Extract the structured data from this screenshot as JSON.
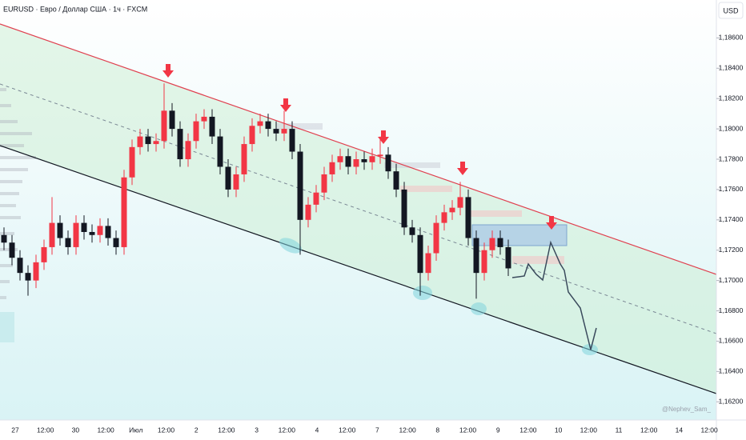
{
  "chart_data": {
    "type": "candlestick",
    "title": "EURUSD · Евро / Доллар США · 1ч · FXCM",
    "currency": "USD",
    "watermark": "@Nephev_Sam_",
    "categories": [
      "27",
      "12:00",
      "30",
      "12:00",
      "Июл",
      "12:00",
      "2",
      "12:00",
      "3",
      "12:00",
      "4",
      "12:00",
      "7",
      "12:00",
      "8",
      "12:00",
      "9",
      "12:00",
      "10",
      "12:00",
      "11",
      "12:00",
      "14",
      "12:00"
    ],
    "open": [
      1.173,
      1.1725,
      1.1715,
      1.1705,
      1.17,
      1.1712,
      1.1722,
      1.1738,
      1.1728,
      1.1722,
      1.1738,
      1.1732,
      1.173,
      1.1736,
      1.1728,
      1.1722,
      1.1768,
      1.1788,
      1.1795,
      1.179,
      1.1792,
      1.1812,
      1.18,
      1.178,
      1.1792,
      1.1805,
      1.1808,
      1.1795,
      1.1775,
      1.176,
      1.177,
      1.179,
      1.1802,
      1.1805,
      1.18,
      1.1797,
      1.18,
      1.1785,
      1.174,
      1.175,
      1.1758,
      1.177,
      1.1778,
      1.1782,
      1.1775,
      1.178,
      1.1778,
      1.1782,
      1.1783,
      1.1772,
      1.176,
      1.1735,
      1.173,
      1.1705,
      1.1718,
      1.1738,
      1.1745,
      1.1748,
      1.1755,
      1.1728,
      1.1705,
      1.172,
      1.1728,
      1.1722
    ],
    "high": [
      1.1735,
      1.173,
      1.172,
      1.171,
      1.1717,
      1.1727,
      1.1755,
      1.1743,
      1.1733,
      1.1743,
      1.1743,
      1.1737,
      1.1741,
      1.1741,
      1.1733,
      1.1773,
      1.1793,
      1.18,
      1.18,
      1.1797,
      1.183,
      1.1817,
      1.1805,
      1.1797,
      1.181,
      1.1813,
      1.1813,
      1.18,
      1.178,
      1.1775,
      1.1795,
      1.1807,
      1.181,
      1.181,
      1.1805,
      1.1812,
      1.1805,
      1.179,
      1.1755,
      1.1763,
      1.1775,
      1.1783,
      1.1787,
      1.1787,
      1.1785,
      1.1785,
      1.1787,
      1.1795,
      1.1788,
      1.1777,
      1.1765,
      1.174,
      1.1735,
      1.1723,
      1.1743,
      1.175,
      1.1753,
      1.1765,
      1.176,
      1.1733,
      1.1725,
      1.1733,
      1.1733,
      1.1727
    ],
    "low": [
      1.172,
      1.171,
      1.17,
      1.169,
      1.1695,
      1.1707,
      1.1717,
      1.1723,
      1.1717,
      1.1717,
      1.1727,
      1.1725,
      1.1725,
      1.1723,
      1.1717,
      1.1717,
      1.1763,
      1.1783,
      1.1785,
      1.1785,
      1.1787,
      1.1795,
      1.1775,
      1.1775,
      1.1787,
      1.18,
      1.179,
      1.177,
      1.1755,
      1.1755,
      1.1765,
      1.1785,
      1.1797,
      1.1795,
      1.1792,
      1.1792,
      1.178,
      1.1717,
      1.1735,
      1.1745,
      1.1753,
      1.1765,
      1.1773,
      1.177,
      1.177,
      1.1773,
      1.1773,
      1.1777,
      1.1767,
      1.1755,
      1.173,
      1.1725,
      1.169,
      1.17,
      1.1713,
      1.1733,
      1.174,
      1.1743,
      1.1723,
      1.1688,
      1.17,
      1.1715,
      1.1717,
      1.1703
    ],
    "close": [
      1.1725,
      1.1715,
      1.1705,
      1.17,
      1.1712,
      1.1722,
      1.1738,
      1.1728,
      1.1722,
      1.1738,
      1.1732,
      1.173,
      1.1736,
      1.1728,
      1.1722,
      1.1768,
      1.1788,
      1.1795,
      1.179,
      1.1792,
      1.1812,
      1.18,
      1.178,
      1.1792,
      1.1805,
      1.1808,
      1.1795,
      1.1775,
      1.176,
      1.177,
      1.179,
      1.1802,
      1.1805,
      1.18,
      1.1797,
      1.18,
      1.1785,
      1.174,
      1.175,
      1.1758,
      1.177,
      1.1778,
      1.1782,
      1.1775,
      1.178,
      1.1778,
      1.1782,
      1.1783,
      1.1772,
      1.176,
      1.1735,
      1.173,
      1.1705,
      1.1718,
      1.1738,
      1.1745,
      1.1748,
      1.1755,
      1.1728,
      1.1705,
      1.172,
      1.1728,
      1.1722,
      1.1708
    ],
    "up_color": "#f23645",
    "down_color": "#131722",
    "ylim": [
      1.1608,
      1.1885
    ],
    "yticks": [
      {
        "value": 1.162,
        "label": "1,16200"
      },
      {
        "value": 1.164,
        "label": "1,16400"
      },
      {
        "value": 1.166,
        "label": "1,16600"
      },
      {
        "value": 1.168,
        "label": "1,16800"
      },
      {
        "value": 1.17,
        "label": "1,17000"
      },
      {
        "value": 1.172,
        "label": "1,17200"
      },
      {
        "value": 1.174,
        "label": "1,17400"
      },
      {
        "value": 1.176,
        "label": "1,17600"
      },
      {
        "value": 1.178,
        "label": "1,17800"
      },
      {
        "value": 1.18,
        "label": "1,18000"
      },
      {
        "value": 1.182,
        "label": "1,18200"
      },
      {
        "value": 1.184,
        "label": "1,18400"
      },
      {
        "value": 1.186,
        "label": "1,18600"
      }
    ]
  }
}
